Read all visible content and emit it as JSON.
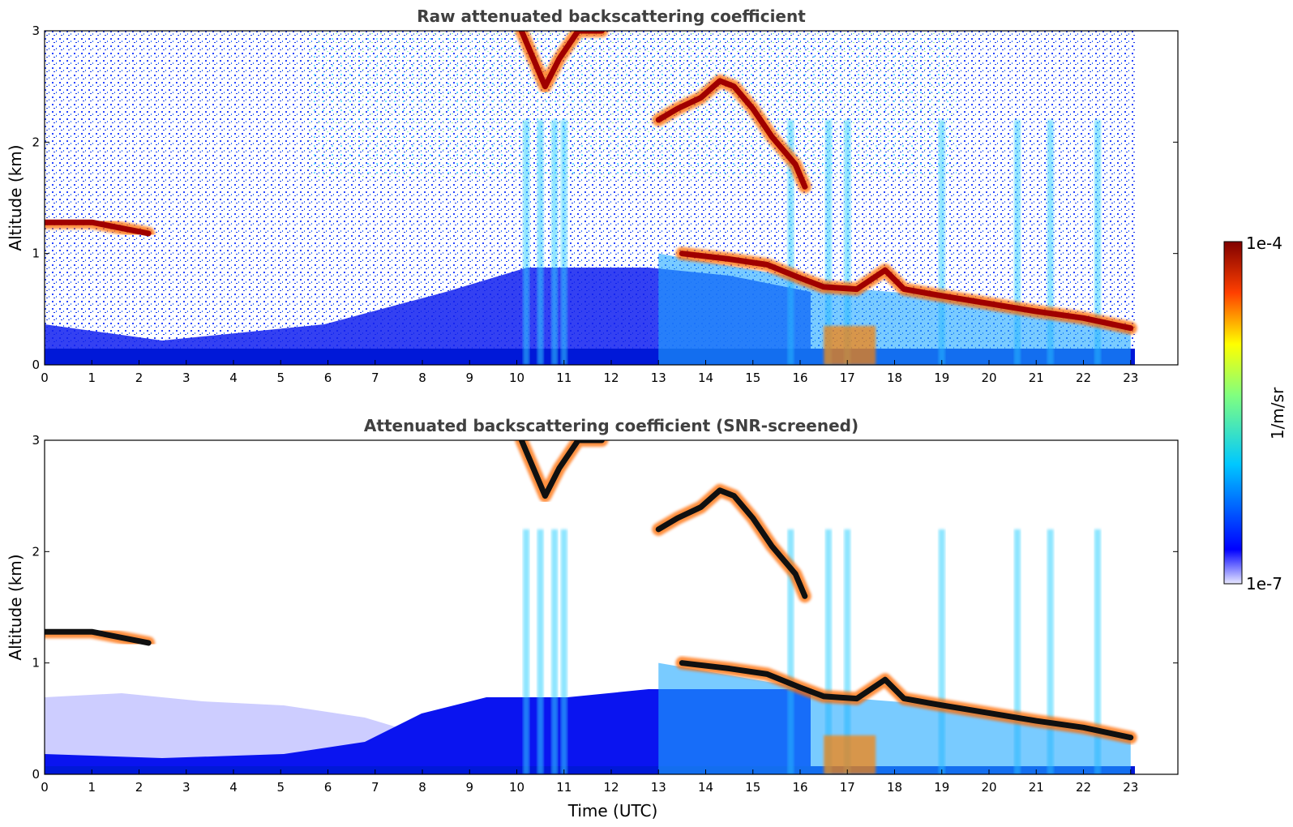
{
  "chart_data": [
    {
      "type": "heatmap",
      "title": "Raw attenuated backscattering coefficient",
      "xlabel": "",
      "ylabel": "Altitude (km)",
      "xlim": [
        0,
        24
      ],
      "ylim": [
        0,
        3
      ],
      "x_ticks": [
        "0",
        "1",
        "2",
        "3",
        "4",
        "5",
        "6",
        "7",
        "8",
        "9",
        "10",
        "11",
        "12",
        "13",
        "14",
        "15",
        "16",
        "17",
        "18",
        "19",
        "20",
        "21",
        "22",
        "23"
      ],
      "y_ticks": [
        "0",
        "1",
        "2",
        "3"
      ],
      "data_time_range": [
        0,
        23
      ],
      "screening": "none",
      "layers": [
        {
          "feature": "cloud layer",
          "points": [
            [
              0,
              1.28
            ],
            [
              1,
              1.28
            ],
            [
              2.2,
              1.18
            ]
          ],
          "value": "1e-4"
        },
        {
          "feature": "smoke plume",
          "points": [
            [
              10.1,
              3.0
            ],
            [
              10.4,
              2.7
            ],
            [
              10.6,
              2.5
            ],
            [
              10.9,
              2.75
            ],
            [
              11.3,
              3.0
            ],
            [
              11.8,
              3.0
            ]
          ],
          "value": "1e-4"
        },
        {
          "feature": "elevated layer",
          "points": [
            [
              13.0,
              2.2
            ],
            [
              13.4,
              2.3
            ],
            [
              13.9,
              2.4
            ],
            [
              14.3,
              2.55
            ],
            [
              14.6,
              2.5
            ],
            [
              15.0,
              2.3
            ],
            [
              15.4,
              2.05
            ],
            [
              15.9,
              1.8
            ],
            [
              16.1,
              1.6
            ]
          ],
          "value": "1e-4"
        },
        {
          "feature": "boundary layer top",
          "points": [
            [
              13.5,
              1.0
            ],
            [
              14.5,
              0.95
            ],
            [
              15.3,
              0.9
            ],
            [
              16.0,
              0.78
            ],
            [
              16.5,
              0.7
            ],
            [
              17.2,
              0.68
            ],
            [
              17.8,
              0.85
            ],
            [
              18.2,
              0.68
            ],
            [
              19.0,
              0.62
            ],
            [
              20.0,
              0.55
            ],
            [
              21.0,
              0.48
            ],
            [
              22.0,
              0.42
            ],
            [
              23.0,
              0.33
            ]
          ],
          "value": "1e-4"
        }
      ]
    },
    {
      "type": "heatmap",
      "title": "Attenuated backscattering coefficient (SNR-screened)",
      "xlabel": "Time (UTC)",
      "ylabel": "Altitude (km)",
      "xlim": [
        0,
        24
      ],
      "ylim": [
        0,
        3
      ],
      "x_ticks": [
        "0",
        "1",
        "2",
        "3",
        "4",
        "5",
        "6",
        "7",
        "8",
        "9",
        "10",
        "11",
        "12",
        "13",
        "14",
        "15",
        "16",
        "17",
        "18",
        "19",
        "20",
        "21",
        "22",
        "23"
      ],
      "y_ticks": [
        "0",
        "1",
        "2",
        "3"
      ],
      "data_time_range": [
        0,
        23
      ],
      "screening": "SNR"
    }
  ],
  "colorbar": {
    "label": "1/m/sr",
    "min_label": "1e-7",
    "max_label": "1e-4",
    "colormap": "jet",
    "scale": "log"
  }
}
